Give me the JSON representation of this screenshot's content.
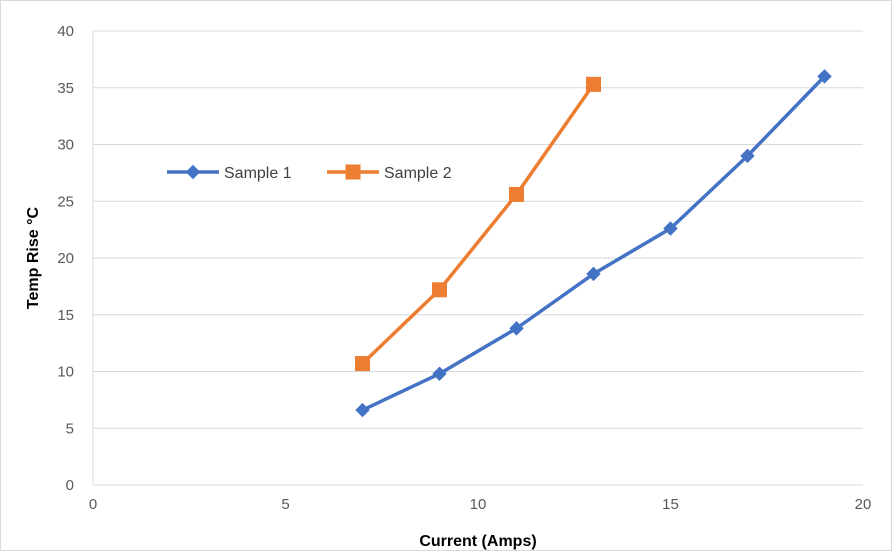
{
  "chart_data": {
    "type": "scatter",
    "xlabel": "Current (Amps)",
    "ylabel": "Temp Rise °C",
    "xlim": [
      0,
      20
    ],
    "ylim": [
      0,
      40
    ],
    "x_ticks": [
      0,
      5,
      10,
      15,
      20
    ],
    "y_ticks": [
      0,
      5,
      10,
      15,
      20,
      25,
      30,
      35,
      40
    ],
    "grid": "horizontal",
    "legend_position": "upper-left",
    "series": [
      {
        "name": "Sample 1",
        "color": "#4472c4",
        "marker": "diamond",
        "x": [
          7,
          9,
          11,
          13,
          15,
          17,
          19
        ],
        "y": [
          6.6,
          9.8,
          13.8,
          18.6,
          22.6,
          29,
          36
        ]
      },
      {
        "name": "Sample 2",
        "color": "#ed7d31",
        "marker": "square",
        "x": [
          7,
          9,
          11,
          13
        ],
        "y": [
          10.7,
          17.2,
          25.6,
          35.3
        ]
      }
    ]
  }
}
